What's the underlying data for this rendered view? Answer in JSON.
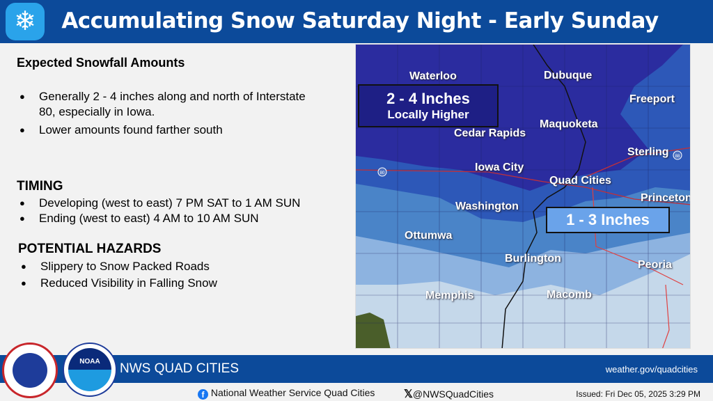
{
  "header": {
    "title": "Accumulating Snow Saturday Night - Early Sunday",
    "icon": "snowflake-icon"
  },
  "left": {
    "snowfall_heading": "Expected Snowfall Amounts",
    "snowfall_items": [
      "Generally 2 - 4 inches along and north of Interstate 80, especially in Iowa.",
      "Lower amounts found farther south"
    ],
    "timing_heading": "TIMING",
    "timing_items": [
      "Developing (west to east) 7 PM SAT to 1 AM SUN",
      "Ending (west to east) 4 AM to 10 AM SUN"
    ],
    "hazards_heading": "POTENTIAL HAZARDS",
    "hazards_items": [
      "Slippery to Snow Packed Roads",
      "Reduced Visibility in Falling Snow"
    ]
  },
  "map": {
    "box_high": {
      "line1": "2 - 4 Inches",
      "line2": "Locally Higher"
    },
    "box_low": "1 - 3 Inches",
    "cities": [
      "Waterloo",
      "Dubuque",
      "Freeport",
      "Maquoketa",
      "Cedar Rapids",
      "Sterling",
      "Iowa City",
      "Quad Cities",
      "Princeton",
      "Washington",
      "Ottumwa",
      "Burlington",
      "Peoria",
      "Memphis",
      "Macomb"
    ],
    "shields": [
      "80",
      "88"
    ],
    "colors": {
      "band1": "#2b2c9f",
      "band2": "#2d58b8",
      "band3": "#4a84c8",
      "band4": "#8db3e0",
      "band5": "#c5d8ea"
    }
  },
  "footer": {
    "office": "NWS QUAD CITIES",
    "url": "weather.gov/quadcities",
    "facebook": "National Weather Service Quad Cities",
    "twitter": "@NWSQuadCities",
    "issued": "Issued: Fri Dec 05, 2025 3:29 PM",
    "noaa": "NOAA"
  }
}
